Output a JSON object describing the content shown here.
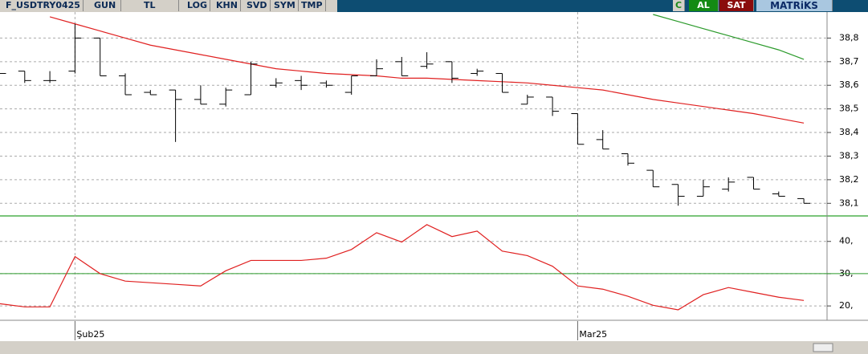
{
  "toolbar": {
    "symbol": "F_USDTRY0425",
    "period": "GUN",
    "currency": "TL",
    "buttons": [
      "LOG",
      "KHN",
      "SVD",
      "SYM",
      "TMP"
    ],
    "refresh": "C",
    "buy": "AL",
    "sell": "SAT",
    "brand": "MATRiKS"
  },
  "chart_data": [
    {
      "type": "ohlc",
      "categories": [
        null,
        null,
        null,
        "Şub25",
        null,
        null,
        null,
        null,
        null,
        null,
        null,
        null,
        null,
        null,
        null,
        null,
        null,
        null,
        null,
        null,
        null,
        null,
        null,
        "Mar25",
        null,
        null,
        null,
        null,
        null,
        null,
        null,
        null,
        null
      ],
      "open": [
        38.66,
        38.66,
        38.62,
        38.66,
        38.8,
        38.64,
        38.57,
        38.58,
        38.54,
        38.52,
        38.56,
        38.6,
        38.62,
        38.61,
        38.57,
        38.64,
        38.7,
        38.68,
        38.7,
        38.65,
        38.65,
        38.52,
        38.55,
        38.48,
        38.37,
        38.31,
        38.24,
        38.18,
        38.13,
        38.16,
        38.21,
        38.14,
        38.12
      ],
      "high": [
        38.66,
        38.66,
        38.66,
        38.86,
        38.8,
        38.65,
        38.58,
        38.58,
        38.6,
        38.59,
        38.7,
        38.63,
        38.64,
        38.62,
        38.64,
        38.71,
        38.72,
        38.74,
        38.7,
        38.67,
        38.65,
        38.56,
        38.55,
        38.48,
        38.41,
        38.31,
        38.24,
        38.18,
        38.2,
        38.21,
        38.21,
        38.15,
        38.12
      ],
      "low": [
        38.65,
        38.61,
        38.61,
        38.65,
        38.64,
        38.56,
        38.56,
        38.36,
        38.52,
        38.51,
        38.56,
        38.59,
        38.58,
        38.59,
        38.56,
        38.64,
        38.64,
        38.67,
        38.61,
        38.64,
        38.57,
        38.52,
        38.47,
        38.35,
        38.33,
        38.26,
        38.17,
        38.09,
        38.13,
        38.15,
        38.16,
        38.13,
        38.1
      ],
      "close": [
        38.65,
        38.62,
        38.62,
        38.8,
        38.64,
        38.56,
        38.56,
        38.54,
        38.52,
        38.58,
        38.69,
        38.61,
        38.6,
        38.6,
        38.64,
        38.67,
        38.64,
        38.69,
        38.63,
        38.66,
        38.57,
        38.55,
        38.49,
        38.35,
        38.33,
        38.27,
        38.17,
        38.13,
        38.17,
        38.19,
        38.16,
        38.13,
        38.1
      ],
      "color": "#000000",
      "series": [
        {
          "color": "#e02020",
          "values": [
            null,
            null,
            38.89,
            38.86,
            38.83,
            38.8,
            38.77,
            38.75,
            38.73,
            38.71,
            38.69,
            38.67,
            38.66,
            38.65,
            38.645,
            38.64,
            38.63,
            38.63,
            38.625,
            38.62,
            38.615,
            38.61,
            38.6,
            38.59,
            38.58,
            38.56,
            38.54,
            38.525,
            38.51,
            38.495,
            38.48,
            38.46,
            38.44
          ]
        },
        {
          "color": "#2a9a2a",
          "values": [
            null,
            null,
            null,
            null,
            null,
            null,
            null,
            null,
            null,
            null,
            null,
            null,
            null,
            null,
            null,
            null,
            null,
            null,
            null,
            null,
            null,
            null,
            null,
            null,
            null,
            null,
            38.9,
            38.87,
            38.84,
            38.81,
            38.78,
            38.75,
            38.71
          ]
        }
      ],
      "ylim": [
        38.05,
        38.9
      ],
      "yticks": [
        {
          "value": 38.1,
          "label": "38,1"
        },
        {
          "value": 38.2,
          "label": "38,2"
        },
        {
          "value": 38.3,
          "label": "38,3"
        },
        {
          "value": 38.4,
          "label": "38,4"
        },
        {
          "value": 38.5,
          "label": "38,5"
        },
        {
          "value": 38.6,
          "label": "38,6"
        },
        {
          "value": 38.7,
          "label": "38,7"
        },
        {
          "value": 38.8,
          "label": "38,8"
        }
      ],
      "grid": true
    },
    {
      "type": "line",
      "series": [
        {
          "color": "#e02020",
          "values": [
            20.7,
            19.7,
            19.7,
            35.3,
            30,
            27.7,
            27.2,
            26.7,
            26.2,
            30.9,
            34.1,
            34.1,
            34.1,
            34.8,
            37.5,
            42.7,
            39.8,
            45.2,
            41.5,
            43.2,
            37,
            35.6,
            32.3,
            26.2,
            25.2,
            23,
            20.2,
            18.8,
            23.5,
            25.7,
            24.2,
            22.7,
            21.7
          ]
        }
      ],
      "reference_line": 30,
      "reference_color": "#2a9a2a",
      "ylim": [
        15.8,
        47.4
      ],
      "yticks": [
        {
          "value": 20,
          "label": "20,"
        },
        {
          "value": 30,
          "label": "30,"
        },
        {
          "value": 40,
          "label": "40,"
        }
      ],
      "grid": true
    }
  ]
}
